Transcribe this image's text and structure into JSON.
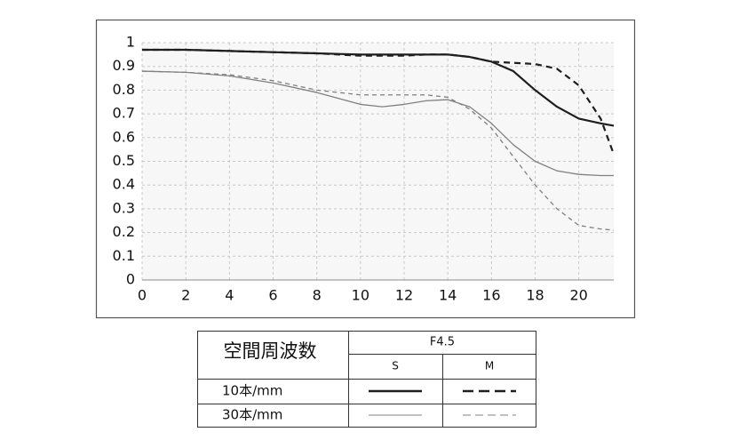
{
  "chart_data": {
    "type": "line",
    "x": [
      0,
      2,
      4,
      6,
      8,
      10,
      11,
      12,
      13,
      14,
      15,
      16,
      17,
      18,
      19,
      20,
      21,
      21.6
    ],
    "series": [
      {
        "color": "#1e1e1e",
        "dash": false,
        "values": [
          0.97,
          0.97,
          0.965,
          0.96,
          0.955,
          0.95,
          0.95,
          0.95,
          0.95,
          0.95,
          0.94,
          0.92,
          0.88,
          0.8,
          0.73,
          0.68,
          0.66,
          0.65
        ]
      },
      {
        "color": "#1e1e1e",
        "dash": true,
        "values": [
          0.97,
          0.97,
          0.965,
          0.96,
          0.955,
          0.945,
          0.945,
          0.945,
          0.95,
          0.95,
          0.94,
          0.92,
          0.915,
          0.91,
          0.89,
          0.82,
          0.68,
          0.53
        ]
      },
      {
        "color": "#808080",
        "dash": false,
        "values": [
          0.88,
          0.875,
          0.86,
          0.83,
          0.79,
          0.74,
          0.73,
          0.74,
          0.755,
          0.76,
          0.73,
          0.66,
          0.57,
          0.5,
          0.46,
          0.445,
          0.44,
          0.44
        ]
      },
      {
        "color": "#808080",
        "dash": true,
        "values": [
          0.88,
          0.875,
          0.865,
          0.84,
          0.8,
          0.78,
          0.78,
          0.78,
          0.78,
          0.77,
          0.72,
          0.64,
          0.52,
          0.4,
          0.3,
          0.23,
          0.215,
          0.21
        ]
      }
    ],
    "xlim": [
      0,
      21.6
    ],
    "ylim": [
      0,
      1
    ],
    "xticks": [
      0,
      2,
      4,
      6,
      8,
      10,
      12,
      14,
      16,
      18,
      20
    ],
    "yticks": [
      0,
      0.1,
      0.2,
      0.3,
      0.4,
      0.5,
      0.6,
      0.7,
      0.8,
      0.9,
      1
    ],
    "grid": true,
    "legend": {
      "header": "空間周波数",
      "aperture": "F4.5",
      "columns": [
        "S",
        "M"
      ],
      "rows": [
        "10本/mm",
        "30本/mm"
      ]
    }
  }
}
